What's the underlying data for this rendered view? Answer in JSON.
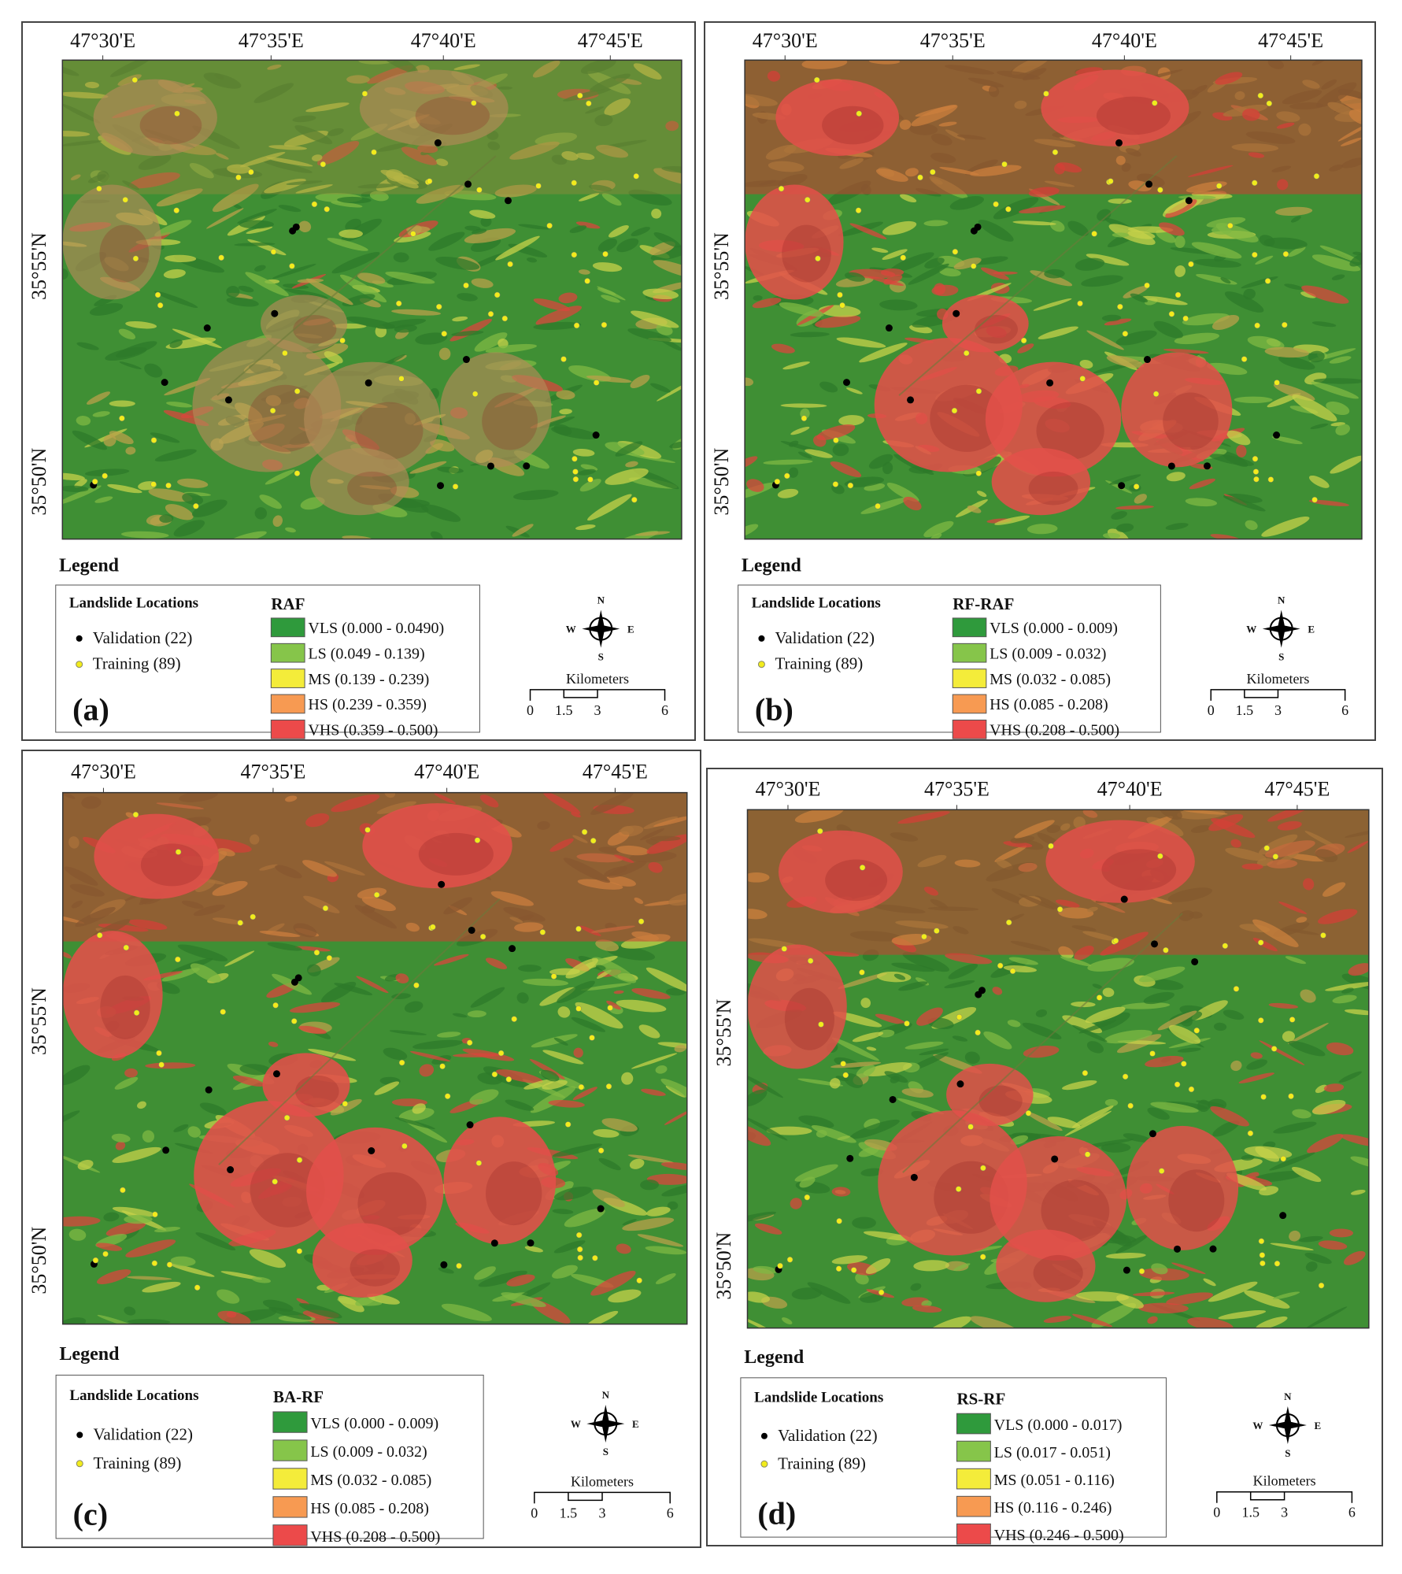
{
  "panels": [
    {
      "label": "(a)",
      "lon_labels": [
        "47°30'E",
        "47°35'E",
        "47°40'E",
        "47°45'E"
      ],
      "lat_labels": [
        "35°55'N",
        "35°50'N"
      ],
      "legend_title": "Legend",
      "locations_title": "Landslide Locations",
      "locations": [
        "Validation (22)",
        "Training (89)"
      ],
      "model": "RAF",
      "classes": [
        "VLS (0.000 - 0.0490)",
        "LS (0.049 - 0.139)",
        "MS (0.139 - 0.239)",
        "HS (0.239 - 0.359)",
        "VHS (0.359 - 0.500)"
      ],
      "compass": [
        "N",
        "S",
        "W",
        "E"
      ],
      "scale_title": "Kilometers",
      "scale_ticks": [
        "0",
        "1.5",
        "3",
        "6"
      ]
    },
    {
      "label": "(b)",
      "lon_labels": [
        "47°30'E",
        "47°35'E",
        "47°40'E",
        "47°45'E"
      ],
      "lat_labels": [
        "35°55'N",
        "35°50'N"
      ],
      "legend_title": "Legend",
      "locations_title": "Landslide Locations",
      "locations": [
        "Validation (22)",
        "Training (89)"
      ],
      "model": "RF-RAF",
      "classes": [
        "VLS (0.000 - 0.009)",
        "LS (0.009 - 0.032)",
        "MS (0.032 - 0.085)",
        "HS (0.085 - 0.208)",
        "VHS (0.208 - 0.500)"
      ],
      "compass": [
        "N",
        "S",
        "W",
        "E"
      ],
      "scale_title": "Kilometers",
      "scale_ticks": [
        "0",
        "1.5",
        "3",
        "6"
      ]
    },
    {
      "label": "(c)",
      "lon_labels": [
        "47°30'E",
        "47°35'E",
        "47°40'E",
        "47°45'E"
      ],
      "lat_labels": [
        "35°55'N",
        "35°50'N"
      ],
      "legend_title": "Legend",
      "locations_title": "Landslide Locations",
      "locations": [
        "Validation (22)",
        "Training (89)"
      ],
      "model": "BA-RF",
      "classes": [
        "VLS (0.000 - 0.009)",
        "LS (0.009 - 0.032)",
        "MS (0.032 - 0.085)",
        "HS (0.085 - 0.208)",
        "VHS (0.208 - 0.500)"
      ],
      "compass": [
        "N",
        "S",
        "W",
        "E"
      ],
      "scale_title": "Kilometers",
      "scale_ticks": [
        "0",
        "1.5",
        "3",
        "6"
      ]
    },
    {
      "label": "(d)",
      "lon_labels": [
        "47°30'E",
        "47°35'E",
        "47°40'E",
        "47°45'E"
      ],
      "lat_labels": [
        "35°55'N",
        "35°50'N"
      ],
      "legend_title": "Legend",
      "locations_title": "Landslide Locations",
      "locations": [
        "Validation (22)",
        "Training (89)"
      ],
      "model": "RS-RF",
      "classes": [
        "VLS (0.000 - 0.017)",
        "LS (0.017 - 0.051)",
        "MS (0.051 - 0.116)",
        "HS (0.116 - 0.246)",
        "VHS (0.246 - 0.500)"
      ],
      "compass": [
        "N",
        "S",
        "W",
        "E"
      ],
      "scale_title": "Kilometers",
      "scale_ticks": [
        "0",
        "1.5",
        "3",
        "6"
      ]
    }
  ]
}
